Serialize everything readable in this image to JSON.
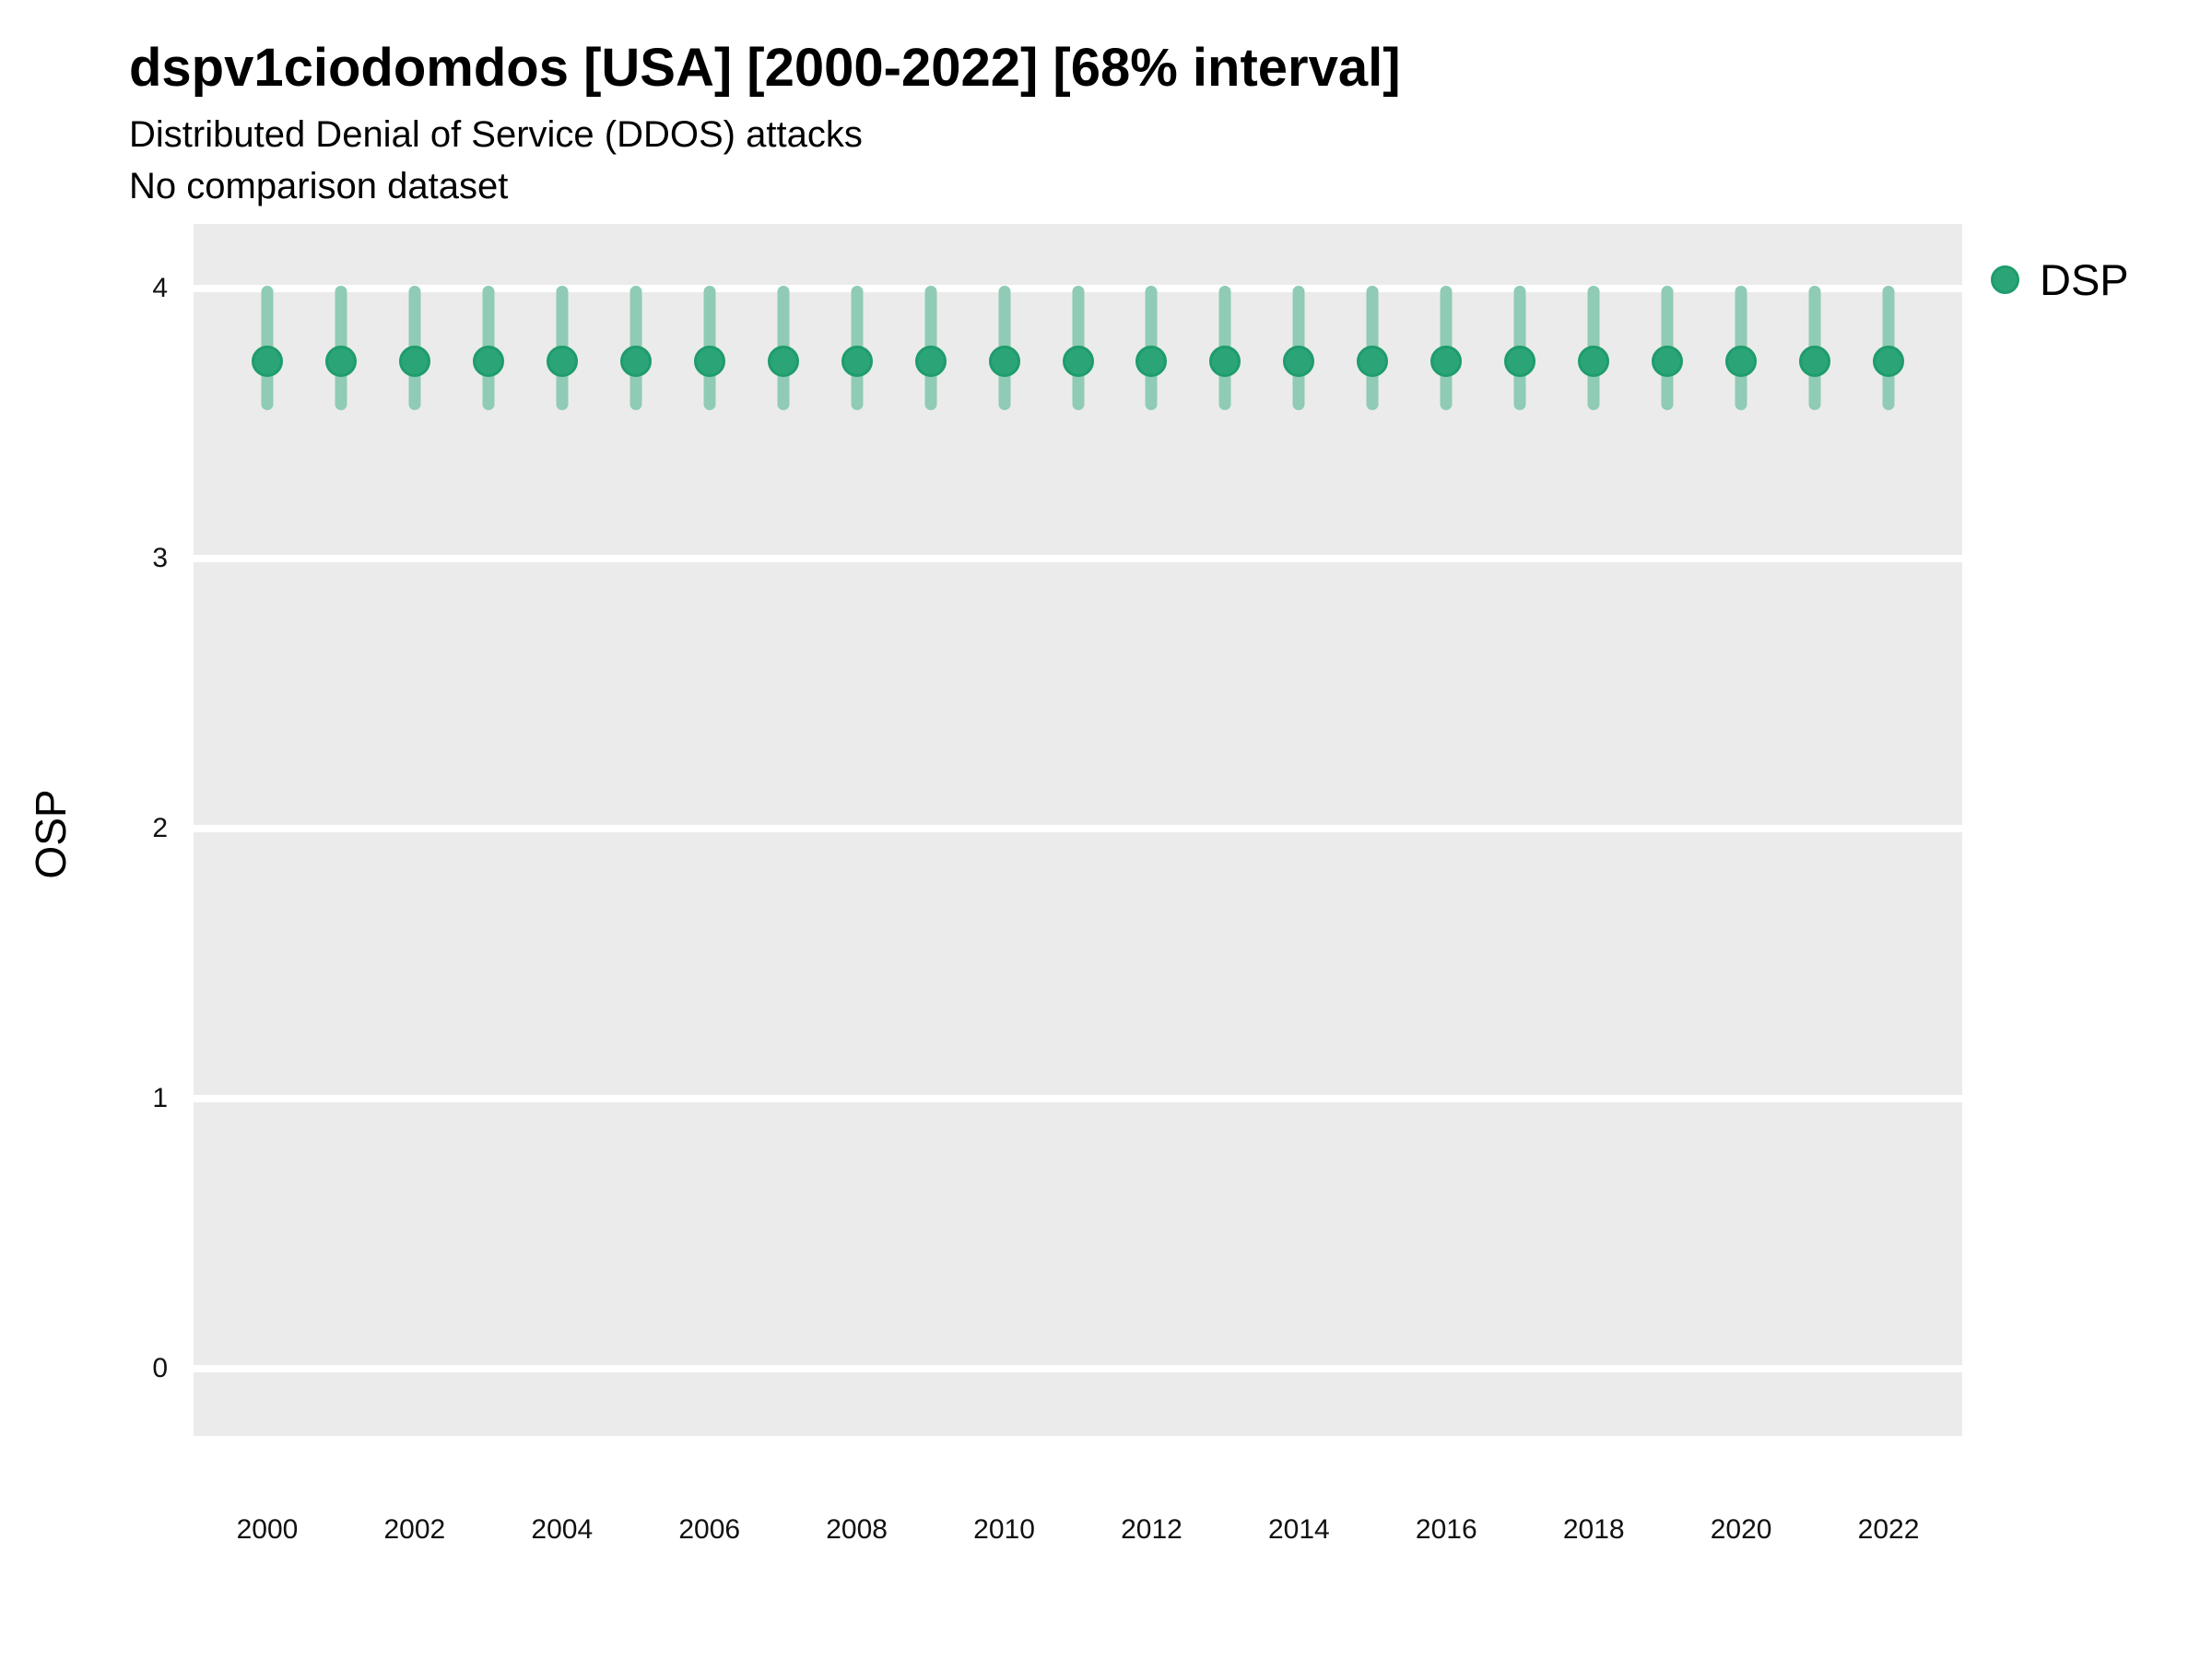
{
  "header": {
    "title": "dspv1ciodomdos [USA] [2000-2022] [68% interval]",
    "subtitle": "Distributed Denial of Service (DDOS) attacks",
    "note": "No comparison dataset"
  },
  "legend": {
    "items": [
      {
        "label": "DSP",
        "color": "#2ba578",
        "edge_color": "#1f9c6c"
      }
    ],
    "position": "right-top"
  },
  "colors": {
    "panel_background": "#ebebeb",
    "gridline": "#ffffff",
    "point_fill": "#2ba578",
    "point_edge": "#1f9c6c",
    "error_bar": "#8fcbb5",
    "text": "#000000",
    "tick_text": "#111111"
  },
  "chart_data": {
    "type": "scatter",
    "variant": "points-with-vertical-error-bars",
    "title": "dspv1ciodomdos [USA] [2000-2022] [68% interval]",
    "subtitle": "Distributed Denial of Service (DDOS) attacks",
    "note": "No comparison dataset",
    "interval": "68% interval",
    "xlabel": "",
    "ylabel": "OSP",
    "x": [
      2000,
      2001,
      2002,
      2003,
      2004,
      2005,
      2006,
      2007,
      2008,
      2009,
      2010,
      2011,
      2012,
      2013,
      2014,
      2015,
      2016,
      2017,
      2018,
      2019,
      2020,
      2021,
      2022
    ],
    "series": [
      {
        "name": "DSP",
        "values": [
          3.73,
          3.73,
          3.73,
          3.73,
          3.73,
          3.73,
          3.73,
          3.73,
          3.73,
          3.73,
          3.73,
          3.73,
          3.73,
          3.73,
          3.73,
          3.73,
          3.73,
          3.73,
          3.73,
          3.73,
          3.73,
          3.73,
          3.73
        ],
        "lower": [
          3.55,
          3.55,
          3.55,
          3.55,
          3.55,
          3.55,
          3.55,
          3.55,
          3.55,
          3.55,
          3.55,
          3.55,
          3.55,
          3.55,
          3.55,
          3.55,
          3.55,
          3.55,
          3.55,
          3.55,
          3.55,
          3.55,
          3.55
        ],
        "upper": [
          4.01,
          4.01,
          4.01,
          4.01,
          4.01,
          4.01,
          4.01,
          4.01,
          4.01,
          4.01,
          4.01,
          4.01,
          4.01,
          4.01,
          4.01,
          4.01,
          4.01,
          4.01,
          4.01,
          4.01,
          4.01,
          4.01,
          4.01
        ]
      }
    ],
    "xlim": [
      1999,
      2023
    ],
    "ylim": [
      -0.25,
      4.24
    ],
    "xticks": [
      2000,
      2002,
      2004,
      2006,
      2008,
      2010,
      2012,
      2014,
      2016,
      2018,
      2020,
      2022
    ],
    "yticks": [
      0,
      1,
      2,
      3,
      4
    ],
    "grid": "major-horizontal-only",
    "legend_position": "right-top"
  }
}
